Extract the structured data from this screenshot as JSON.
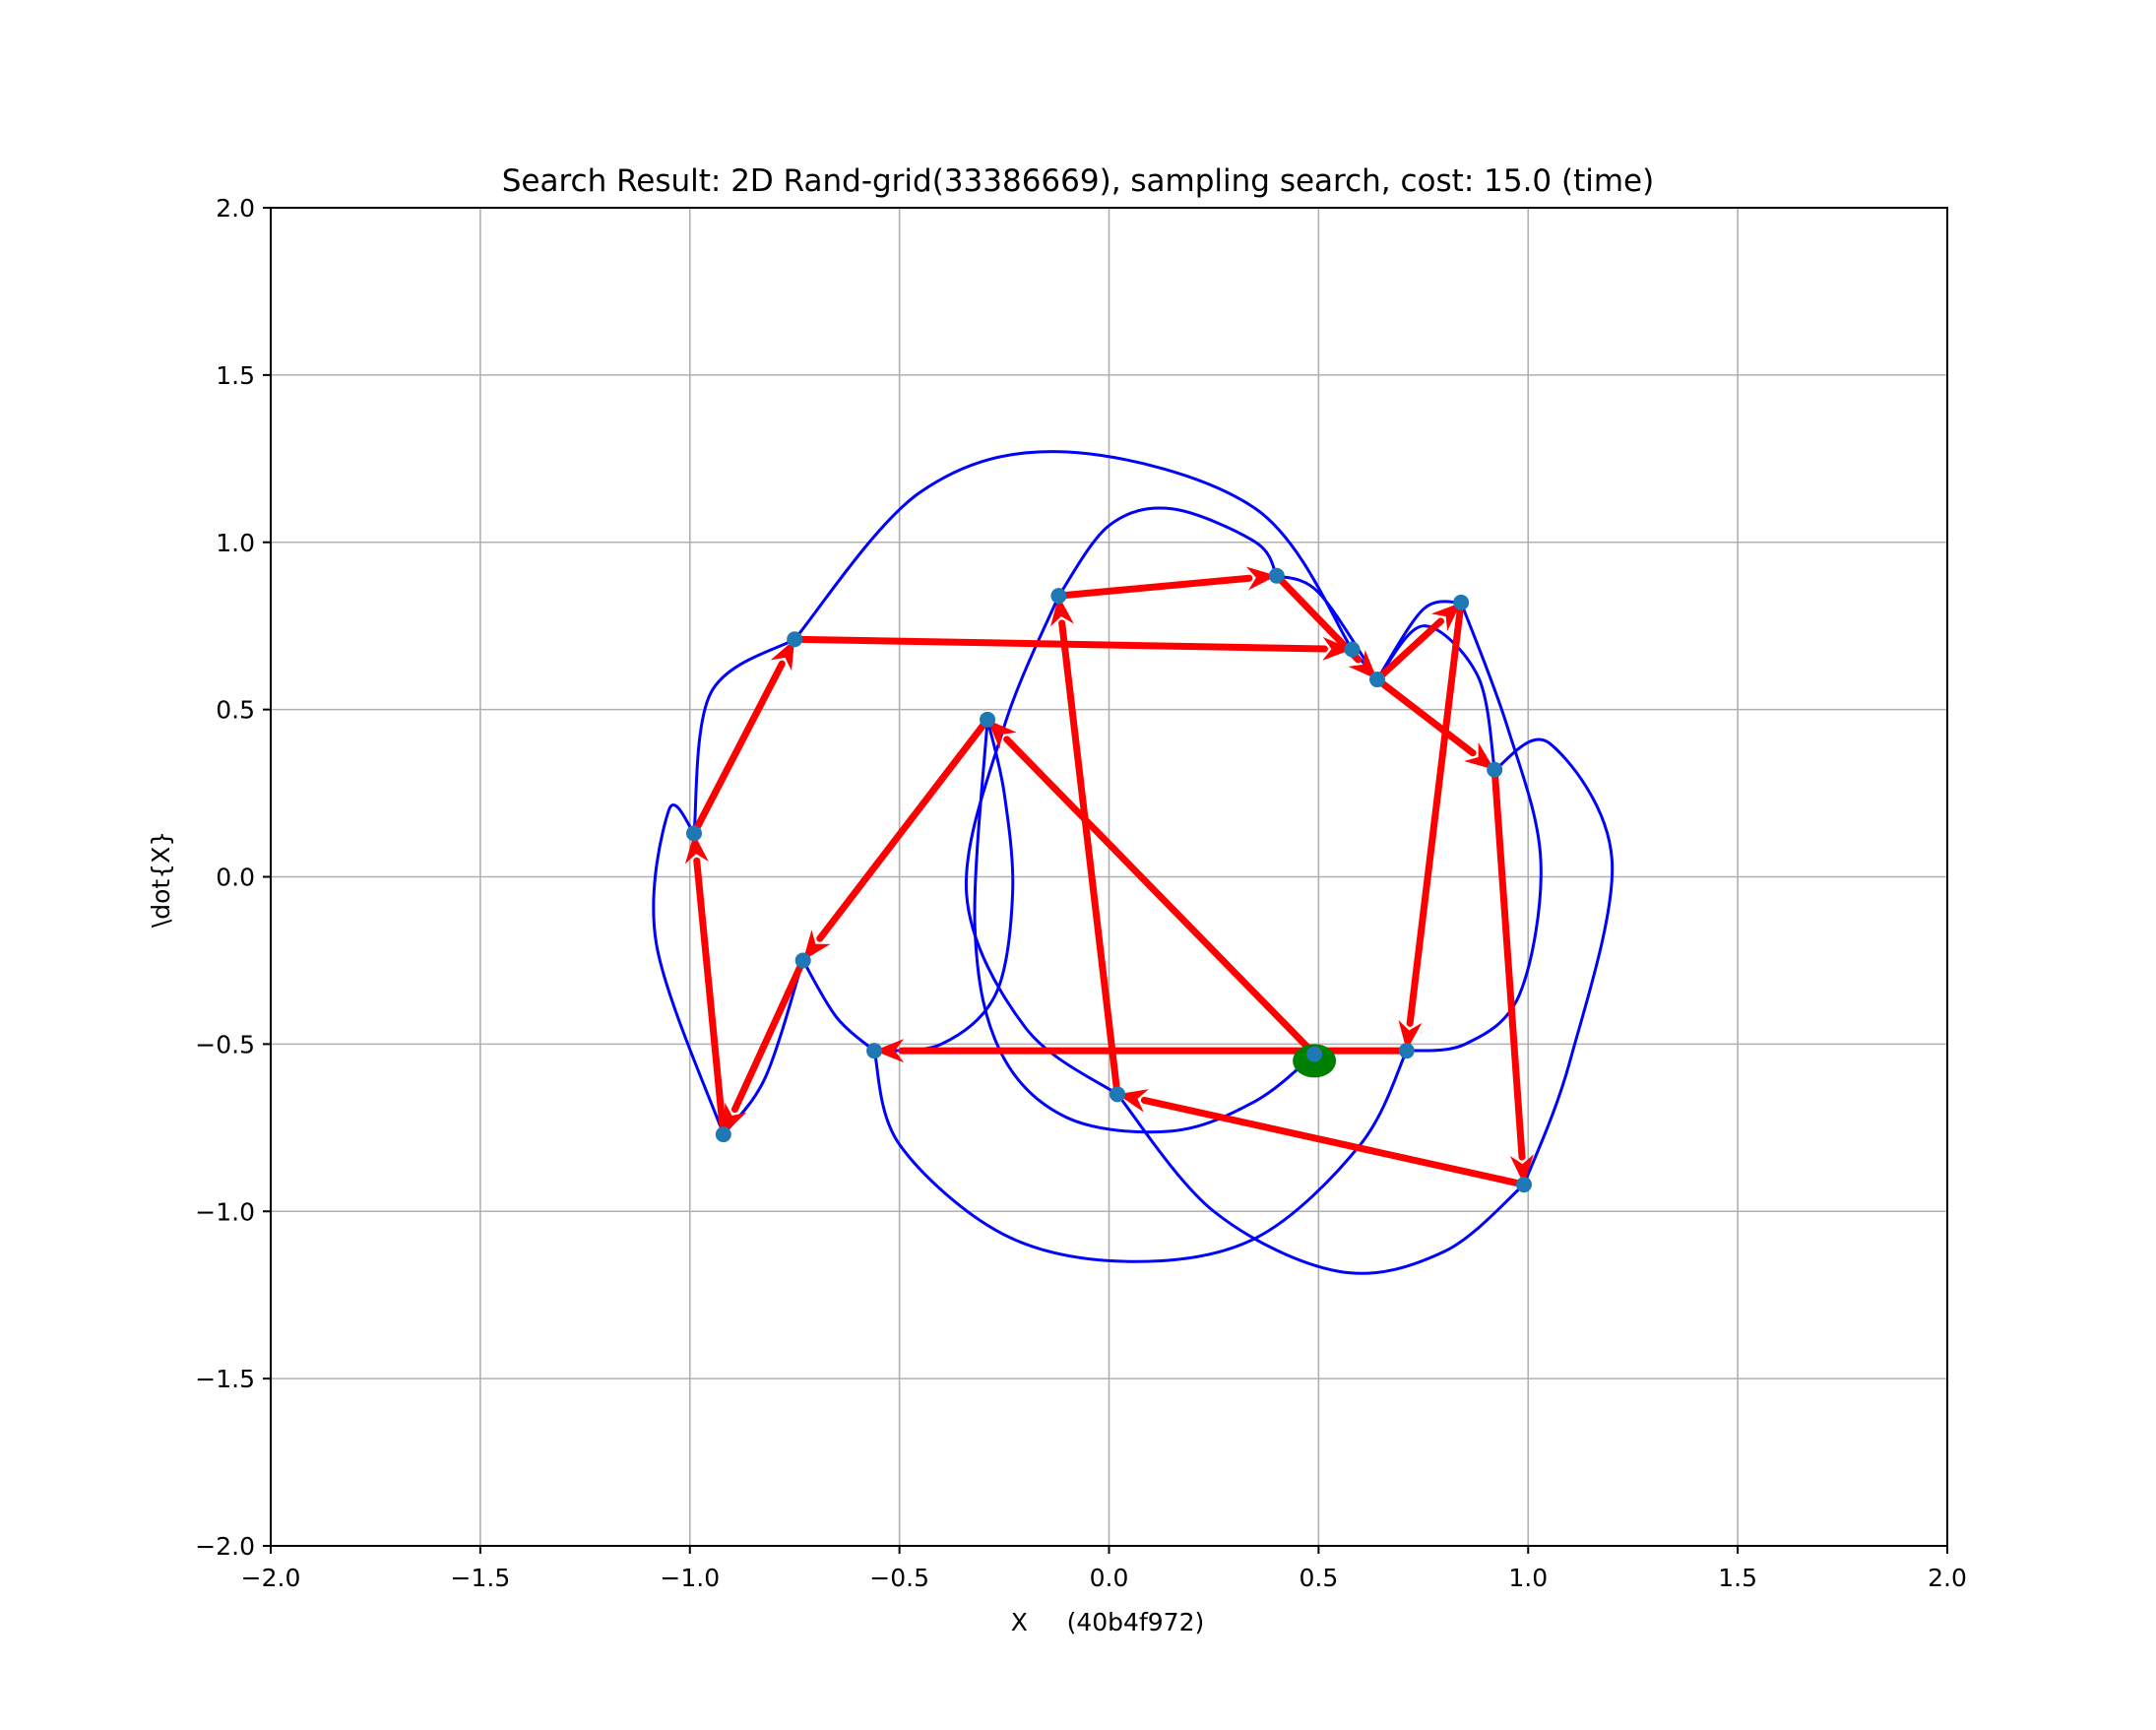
{
  "chart_data": {
    "type": "scatter",
    "title": "Search Result: 2D Rand-grid(33386669), sampling search, cost: 15.0 (time)",
    "xlabel": "X     (40b4f972)",
    "ylabel": "\\dot{X}",
    "xlim": [
      -2.0,
      2.0
    ],
    "ylim": [
      -2.0,
      2.0
    ],
    "xticks": [
      -2.0,
      -1.5,
      -1.0,
      -0.5,
      0.0,
      0.5,
      1.0,
      1.5,
      2.0
    ],
    "yticks": [
      -2.0,
      -1.5,
      -1.0,
      -0.5,
      0.0,
      0.5,
      1.0,
      1.5,
      2.0
    ],
    "xtick_labels": [
      "−2.0",
      "−1.5",
      "−1.0",
      "−0.5",
      "0.0",
      "0.5",
      "1.0",
      "1.5",
      "2.0"
    ],
    "ytick_labels": [
      "−2.0",
      "−1.5",
      "−1.0",
      "−0.5",
      "0.0",
      "0.5",
      "1.0",
      "1.5",
      "2.0"
    ],
    "grid": true,
    "start": {
      "x": 0.49,
      "y": -0.55,
      "color": "#008000"
    },
    "nodes": [
      {
        "x": 0.49,
        "y": -0.53
      },
      {
        "x": -0.29,
        "y": 0.47
      },
      {
        "x": -0.73,
        "y": -0.25
      },
      {
        "x": -0.92,
        "y": -0.77
      },
      {
        "x": -0.99,
        "y": 0.13
      },
      {
        "x": -0.75,
        "y": 0.71
      },
      {
        "x": 0.58,
        "y": 0.68
      },
      {
        "x": 0.84,
        "y": 0.82
      },
      {
        "x": 0.71,
        "y": -0.52
      },
      {
        "x": -0.56,
        "y": -0.52
      },
      {
        "x": -0.12,
        "y": 0.84
      },
      {
        "x": 0.4,
        "y": 0.9
      },
      {
        "x": 0.64,
        "y": 0.59
      },
      {
        "x": 0.92,
        "y": 0.32
      },
      {
        "x": 0.99,
        "y": -0.92
      },
      {
        "x": 0.02,
        "y": -0.65
      }
    ],
    "edges": [
      {
        "from": [
          0.49,
          -0.53
        ],
        "to": [
          -0.29,
          0.47
        ]
      },
      {
        "from": [
          -0.29,
          0.47
        ],
        "to": [
          -0.73,
          -0.25
        ]
      },
      {
        "from": [
          -0.73,
          -0.25
        ],
        "to": [
          -0.92,
          -0.77
        ]
      },
      {
        "from": [
          -0.92,
          -0.77
        ],
        "to": [
          -0.99,
          0.13
        ]
      },
      {
        "from": [
          -0.99,
          0.13
        ],
        "to": [
          -0.75,
          0.71
        ]
      },
      {
        "from": [
          -0.75,
          0.71
        ],
        "to": [
          0.58,
          0.68
        ]
      },
      {
        "from": [
          0.64,
          0.59
        ],
        "to": [
          0.84,
          0.82
        ]
      },
      {
        "from": [
          0.84,
          0.82
        ],
        "to": [
          0.71,
          -0.52
        ]
      },
      {
        "from": [
          0.71,
          -0.52
        ],
        "to": [
          -0.56,
          -0.52
        ]
      },
      {
        "from": [
          0.02,
          -0.65
        ],
        "to": [
          -0.12,
          0.84
        ]
      },
      {
        "from": [
          -0.12,
          0.84
        ],
        "to": [
          0.4,
          0.9
        ]
      },
      {
        "from": [
          0.4,
          0.9
        ],
        "to": [
          0.64,
          0.59
        ]
      },
      {
        "from": [
          0.64,
          0.59
        ],
        "to": [
          0.92,
          0.32
        ]
      },
      {
        "from": [
          0.92,
          0.32
        ],
        "to": [
          0.99,
          -0.92
        ]
      },
      {
        "from": [
          0.99,
          -0.92
        ],
        "to": [
          0.02,
          -0.65
        ]
      }
    ],
    "trajectories": [
      [
        [
          0.49,
          -0.53
        ],
        [
          0.35,
          -0.67
        ],
        [
          0.15,
          -0.76
        ],
        [
          -0.1,
          -0.72
        ],
        [
          -0.26,
          -0.52
        ],
        [
          -0.32,
          -0.15
        ],
        [
          -0.29,
          0.47
        ]
      ],
      [
        [
          -0.29,
          0.47
        ],
        [
          -0.25,
          0.25
        ],
        [
          -0.23,
          -0.05
        ],
        [
          -0.27,
          -0.35
        ],
        [
          -0.4,
          -0.5
        ],
        [
          -0.56,
          -0.52
        ]
      ],
      [
        [
          -0.56,
          -0.52
        ],
        [
          -0.65,
          -0.42
        ],
        [
          -0.73,
          -0.25
        ]
      ],
      [
        [
          -0.73,
          -0.25
        ],
        [
          -0.82,
          -0.6
        ],
        [
          -0.92,
          -0.77
        ]
      ],
      [
        [
          -0.92,
          -0.77
        ],
        [
          -1.08,
          -0.2
        ],
        [
          -1.05,
          0.2
        ],
        [
          -0.99,
          0.13
        ]
      ],
      [
        [
          -0.99,
          0.13
        ],
        [
          -0.95,
          0.55
        ],
        [
          -0.75,
          0.71
        ]
      ],
      [
        [
          -0.75,
          0.71
        ],
        [
          -0.45,
          1.15
        ],
        [
          -0.1,
          1.27
        ],
        [
          0.35,
          1.1
        ],
        [
          0.58,
          0.68
        ]
      ],
      [
        [
          0.58,
          0.68
        ],
        [
          0.64,
          0.59
        ]
      ],
      [
        [
          0.64,
          0.59
        ],
        [
          0.75,
          0.8
        ],
        [
          0.84,
          0.82
        ]
      ],
      [
        [
          0.84,
          0.82
        ],
        [
          0.95,
          0.45
        ],
        [
          1.03,
          0.05
        ],
        [
          0.98,
          -0.35
        ],
        [
          0.85,
          -0.5
        ],
        [
          0.71,
          -0.52
        ]
      ],
      [
        [
          0.71,
          -0.52
        ],
        [
          0.6,
          -0.8
        ],
        [
          0.35,
          -1.08
        ],
        [
          0.05,
          -1.15
        ],
        [
          -0.25,
          -1.07
        ],
        [
          -0.5,
          -0.8
        ],
        [
          -0.56,
          -0.52
        ]
      ],
      [
        [
          0.02,
          -0.65
        ],
        [
          -0.2,
          -0.45
        ],
        [
          -0.34,
          -0.05
        ],
        [
          -0.25,
          0.45
        ],
        [
          -0.12,
          0.84
        ]
      ],
      [
        [
          -0.12,
          0.84
        ],
        [
          0.0,
          1.05
        ],
        [
          0.15,
          1.1
        ],
        [
          0.35,
          1.0
        ],
        [
          0.4,
          0.9
        ]
      ],
      [
        [
          0.4,
          0.9
        ],
        [
          0.5,
          0.85
        ],
        [
          0.64,
          0.59
        ]
      ],
      [
        [
          0.64,
          0.59
        ],
        [
          0.75,
          0.75
        ],
        [
          0.88,
          0.6
        ],
        [
          0.92,
          0.32
        ]
      ],
      [
        [
          0.92,
          0.32
        ],
        [
          1.05,
          0.4
        ],
        [
          1.2,
          0.05
        ],
        [
          1.1,
          -0.55
        ],
        [
          0.99,
          -0.92
        ]
      ],
      [
        [
          0.99,
          -0.92
        ],
        [
          0.8,
          -1.12
        ],
        [
          0.55,
          -1.18
        ],
        [
          0.25,
          -1.0
        ],
        [
          0.02,
          -0.65
        ]
      ]
    ]
  }
}
